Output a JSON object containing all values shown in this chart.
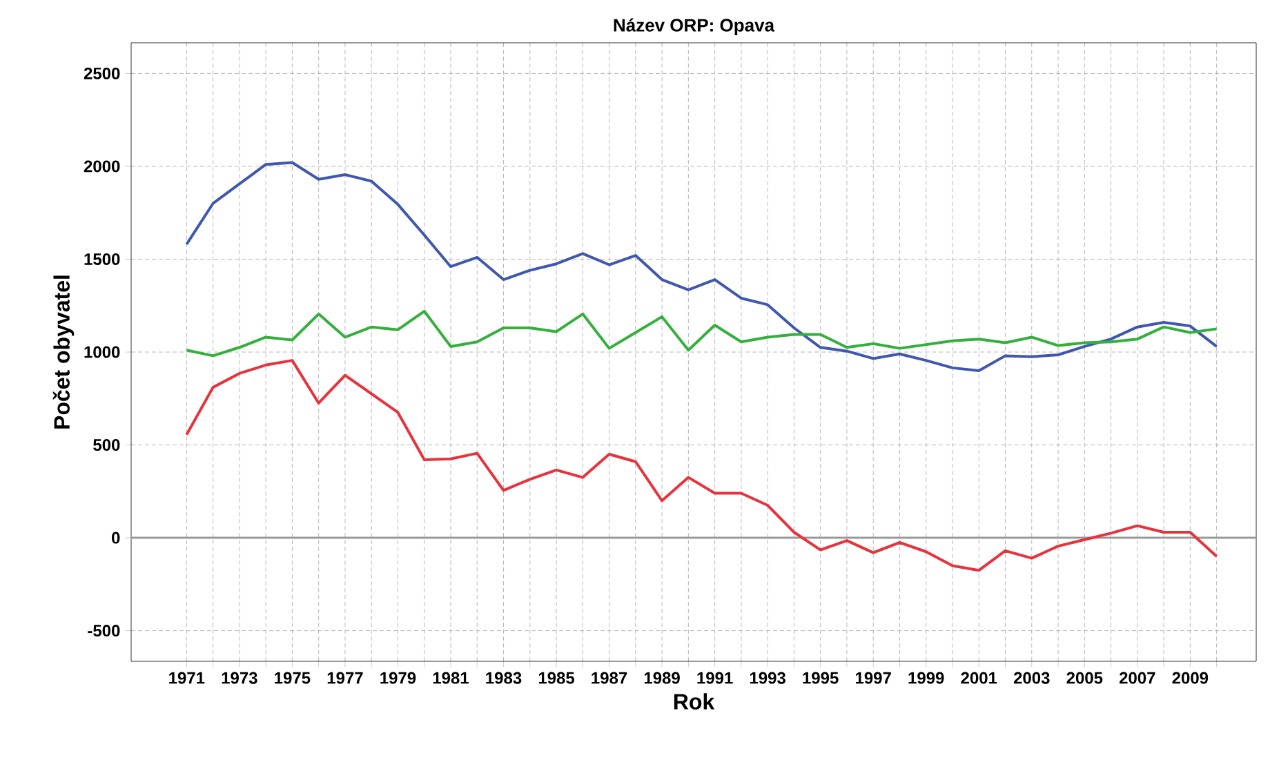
{
  "chart_data": {
    "type": "line",
    "title": "Název ORP: Opava",
    "xlabel": "Rok",
    "ylabel": "Počet obyvatel",
    "x": [
      1971,
      1972,
      1973,
      1974,
      1975,
      1976,
      1977,
      1978,
      1979,
      1980,
      1981,
      1982,
      1983,
      1984,
      1985,
      1986,
      1987,
      1988,
      1989,
      1990,
      1991,
      1992,
      1993,
      1994,
      1995,
      1996,
      1997,
      1998,
      1999,
      2000,
      2001,
      2002,
      2003,
      2004,
      2005,
      2006,
      2007,
      2008,
      2009,
      2010
    ],
    "series": [
      {
        "color": "#3f57b0",
        "values": [
          1580,
          1800,
          1905,
          2010,
          2020,
          1930,
          1955,
          1920,
          1795,
          1630,
          1460,
          1510,
          1390,
          1440,
          1475,
          1530,
          1470,
          1520,
          1390,
          1335,
          1390,
          1290,
          1255,
          1130,
          1025,
          1005,
          965,
          990,
          955,
          915,
          900,
          980,
          975,
          985,
          1030,
          1070,
          1135,
          1160,
          1140,
          1030
        ]
      },
      {
        "color": "#33b03c",
        "values": [
          1010,
          980,
          1025,
          1080,
          1065,
          1205,
          1080,
          1135,
          1120,
          1220,
          1030,
          1055,
          1130,
          1130,
          1110,
          1205,
          1020,
          1105,
          1190,
          1010,
          1145,
          1055,
          1080,
          1095,
          1095,
          1025,
          1045,
          1020,
          1040,
          1060,
          1070,
          1050,
          1080,
          1035,
          1050,
          1055,
          1070,
          1135,
          1105,
          1125
        ]
      },
      {
        "color": "#e8323c",
        "values": [
          555,
          810,
          885,
          930,
          955,
          725,
          875,
          775,
          675,
          420,
          425,
          455,
          255,
          315,
          365,
          325,
          450,
          410,
          200,
          325,
          240,
          240,
          175,
          30,
          -65,
          -15,
          -80,
          -25,
          -75,
          -150,
          -175,
          -70,
          -110,
          -45,
          -10,
          25,
          65,
          30,
          30,
          -100
        ]
      }
    ],
    "xlim": [
      1968.9,
      2011.5
    ],
    "ylim": [
      -665,
      2665
    ],
    "xticks": [
      1971,
      {
        "value": 1972,
        "label": null
      },
      1973,
      {
        "value": 1974,
        "label": null
      },
      1975,
      {
        "value": 1976,
        "label": null
      },
      1977,
      {
        "value": 1978,
        "label": null
      },
      1979,
      {
        "value": 1980,
        "label": null
      },
      1981,
      {
        "value": 1982,
        "label": null
      },
      1983,
      {
        "value": 1984,
        "label": null
      },
      1985,
      {
        "value": 1986,
        "label": null
      },
      1987,
      {
        "value": 1988,
        "label": null
      },
      1989,
      {
        "value": 1990,
        "label": null
      },
      1991,
      {
        "value": 1992,
        "label": null
      },
      1993,
      {
        "value": 1994,
        "label": null
      },
      1995,
      {
        "value": 1996,
        "label": null
      },
      1997,
      {
        "value": 1998,
        "label": null
      },
      1999,
      {
        "value": 2000,
        "label": null
      },
      2001,
      {
        "value": 2002,
        "label": null
      },
      2003,
      {
        "value": 2004,
        "label": null
      },
      2005,
      {
        "value": 2006,
        "label": null
      },
      2007,
      {
        "value": 2008,
        "label": null
      },
      2009,
      {
        "value": 2010,
        "label": null
      }
    ],
    "yticks": [
      -500,
      0,
      500,
      1000,
      1500,
      2000,
      2500
    ],
    "grid": true,
    "marker": "none",
    "line_style": "solid",
    "ref_lines": [
      {
        "axis": "y",
        "value": 0,
        "color": "#999999"
      }
    ]
  }
}
